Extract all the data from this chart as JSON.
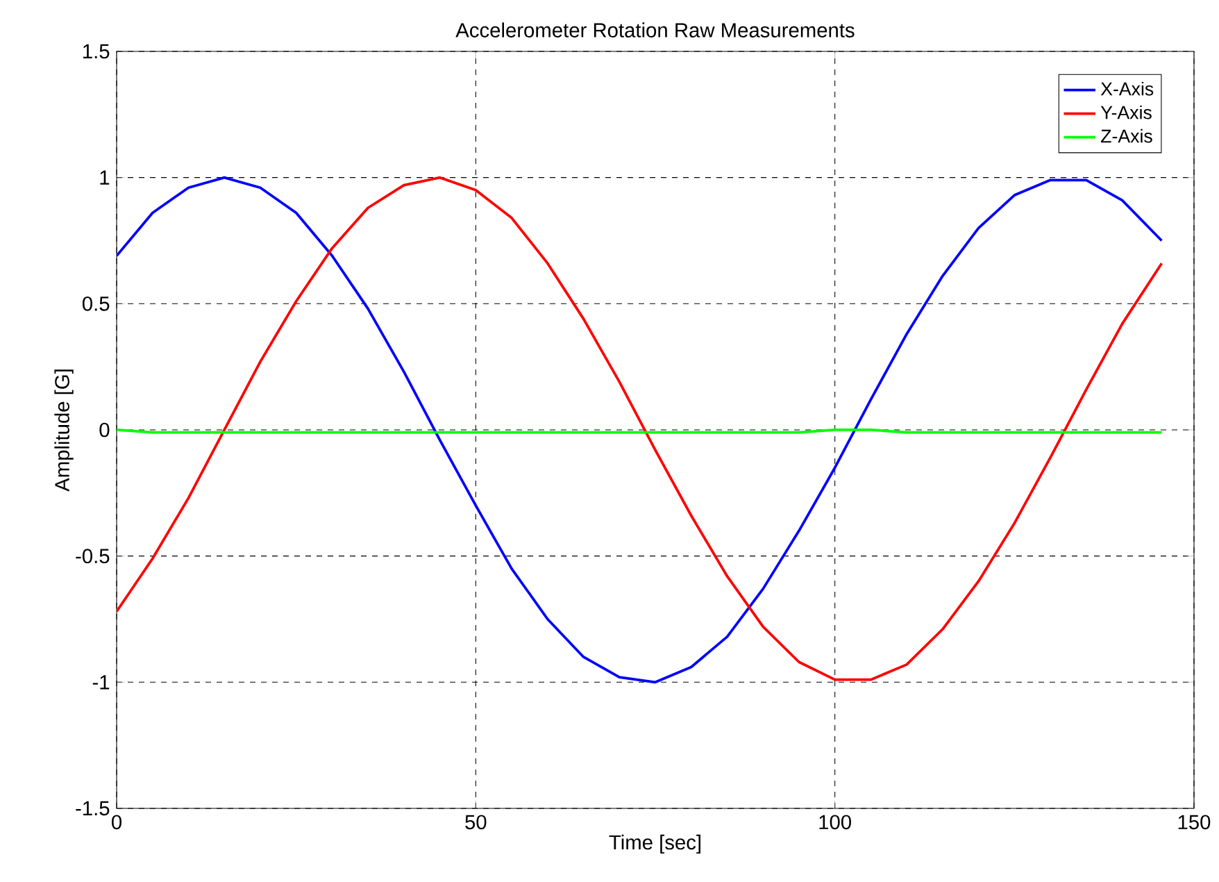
{
  "chart_data": {
    "type": "line",
    "title": "Accelerometer Rotation Raw Measurements",
    "xlabel": "Time [sec]",
    "ylabel": "Amplitude [G]",
    "x": [
      0,
      5,
      10,
      15,
      20,
      25,
      30,
      35,
      40,
      45,
      50,
      55,
      60,
      65,
      70,
      75,
      80,
      85,
      90,
      95,
      100,
      105,
      110,
      115,
      120,
      125,
      130,
      135,
      140,
      145.5
    ],
    "series": [
      {
        "name": "X-Axis",
        "color": "#0000ff",
        "values": [
          0.69,
          0.86,
          0.96,
          1.0,
          0.96,
          0.86,
          0.69,
          0.48,
          0.23,
          -0.04,
          -0.3,
          -0.55,
          -0.75,
          -0.9,
          -0.98,
          -1.0,
          -0.94,
          -0.82,
          -0.63,
          -0.4,
          -0.15,
          0.12,
          0.38,
          0.61,
          0.8,
          0.93,
          0.99,
          0.99,
          0.91,
          0.75
        ]
      },
      {
        "name": "Y-Axis",
        "color": "#ff0000",
        "values": [
          -0.72,
          -0.51,
          -0.27,
          0.0,
          0.27,
          0.51,
          0.72,
          0.88,
          0.97,
          1.0,
          0.95,
          0.84,
          0.66,
          0.44,
          0.19,
          -0.08,
          -0.34,
          -0.58,
          -0.78,
          -0.92,
          -0.99,
          -0.99,
          -0.93,
          -0.79,
          -0.6,
          -0.37,
          -0.11,
          0.16,
          0.42,
          0.66
        ]
      },
      {
        "name": "Z-Axis",
        "color": "#00ff00",
        "values": [
          0.0,
          -0.01,
          -0.01,
          -0.01,
          -0.01,
          -0.01,
          -0.01,
          -0.01,
          -0.01,
          -0.01,
          -0.01,
          -0.01,
          -0.01,
          -0.01,
          -0.01,
          -0.01,
          -0.01,
          -0.01,
          -0.01,
          -0.01,
          0.0,
          0.0,
          -0.01,
          -0.01,
          -0.01,
          -0.01,
          -0.01,
          -0.01,
          -0.01,
          -0.01
        ]
      }
    ],
    "xlim": [
      0,
      150
    ],
    "xticks": [
      0,
      50,
      100,
      150
    ],
    "ylim": [
      -1.5,
      1.5
    ],
    "yticks": [
      -1.5,
      -1,
      -0.5,
      0,
      0.5,
      1,
      1.5
    ],
    "grid": true,
    "legend": "top right",
    "marker": "none",
    "line_style": "solid"
  }
}
